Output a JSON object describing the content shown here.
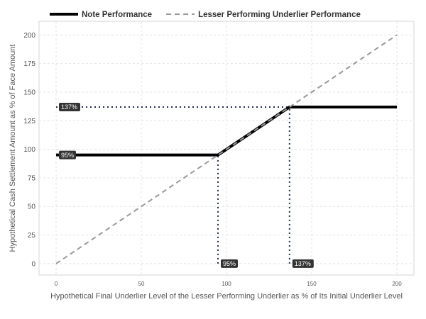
{
  "chart_data": {
    "type": "line",
    "title": "",
    "xlabel": "Hypothetical Final Underlier Level of the Lesser Performing Underlier as % of Its Initial Underlier Level",
    "ylabel": "Hypothetical Cash Settlement Amount as % of Face Amount",
    "xlim": [
      -10,
      210
    ],
    "ylim": [
      -10,
      212
    ],
    "x_ticks": [
      0,
      50,
      100,
      150,
      200
    ],
    "y_ticks": [
      0,
      25,
      50,
      75,
      100,
      125,
      150,
      175,
      200
    ],
    "grid": true,
    "legend_position": "top",
    "series": [
      {
        "name": "Note Performance",
        "style": "solid",
        "color": "#000000",
        "x": [
          0,
          95,
          137,
          200
        ],
        "y": [
          95,
          95,
          137,
          137
        ]
      },
      {
        "name": "Lesser Performing Underlier Performance",
        "style": "dashed",
        "color": "#999999",
        "x": [
          0,
          200
        ],
        "y": [
          0,
          200
        ]
      }
    ],
    "reference_lines": [
      {
        "x": [
          0,
          137
        ],
        "y": [
          137,
          137
        ]
      },
      {
        "x": [
          0,
          95
        ],
        "y": [
          95,
          95
        ]
      },
      {
        "x": [
          95,
          95
        ],
        "y": [
          0,
          95
        ]
      },
      {
        "x": [
          137,
          137
        ],
        "y": [
          0,
          137
        ]
      }
    ],
    "annotations": [
      {
        "text": "137%",
        "axis": "y",
        "value": 137
      },
      {
        "text": "95%",
        "axis": "y",
        "value": 95
      },
      {
        "text": "95%",
        "axis": "x",
        "value": 95
      },
      {
        "text": "137%",
        "axis": "x",
        "value": 137
      }
    ]
  }
}
